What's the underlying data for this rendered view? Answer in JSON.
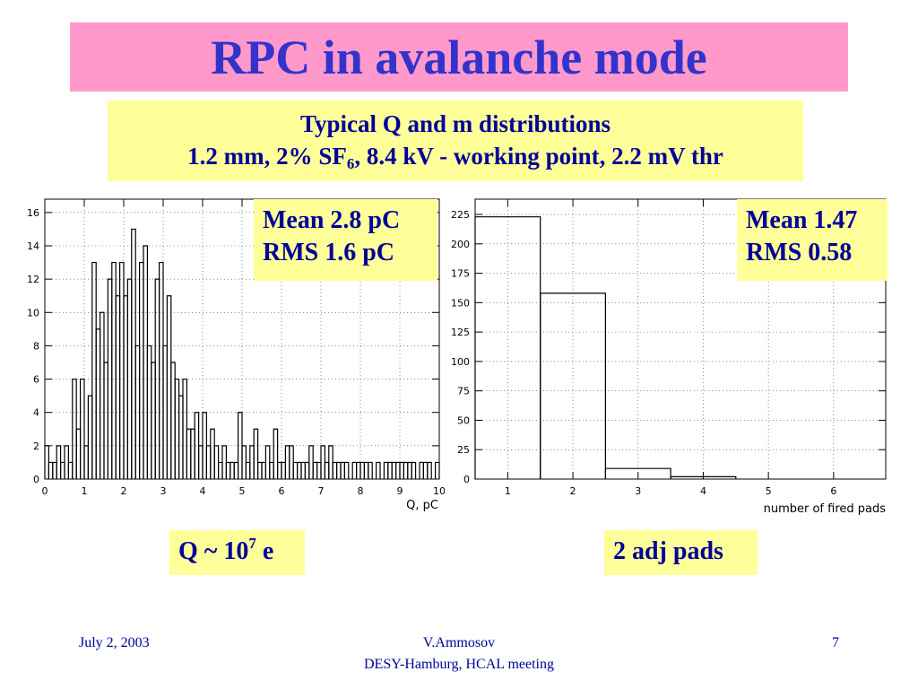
{
  "slide": {
    "title": "RPC in avalanche mode",
    "subtitle_line1": "Typical Q and m distributions",
    "subtitle_line2_pre": "1.2 mm, 2% SF",
    "subtitle_line2_sub": "6",
    "subtitle_line2_post": ", 8.4 kV - working point, 2.2 mV thr",
    "colors": {
      "title_bg": "#ff99cc",
      "title_text": "#3333cc",
      "box_bg": "#ffff99",
      "box_text": "#000099"
    }
  },
  "stats_left": {
    "line1": "Mean 2.8 pC",
    "line2": "RMS 1.6 pC"
  },
  "stats_right": {
    "line1": "Mean 1.47",
    "line2": "RMS 0.58"
  },
  "caption_left": {
    "pre": "Q ~ 10",
    "sup": "7",
    "post": " e"
  },
  "caption_right": "2 adj pads",
  "footer": {
    "date": "July 2, 2003",
    "author": "V.Ammosov",
    "meeting": "DESY-Hamburg,  HCAL  meeting",
    "page": "7"
  },
  "chart_data": [
    {
      "type": "bar",
      "style": "step-histogram",
      "xlabel": "Q, pC",
      "ylabel": "",
      "xlim": [
        0,
        10
      ],
      "ylim": [
        0,
        16.8
      ],
      "grid": true,
      "x_ticks": [
        "0",
        "1",
        "2",
        "3",
        "4",
        "5",
        "6",
        "7",
        "8",
        "9",
        "10"
      ],
      "y_ticks": [
        "0",
        "2",
        "4",
        "6",
        "8",
        "10",
        "12",
        "14",
        "16"
      ],
      "bin_width": 0.1,
      "values": [
        2,
        1,
        1,
        2,
        1,
        2,
        1,
        6,
        3,
        6,
        2,
        5,
        13,
        9,
        10,
        7,
        12,
        13,
        11,
        13,
        11,
        12,
        15,
        8,
        13,
        14,
        8,
        7,
        12,
        13,
        8,
        11,
        7,
        6,
        5,
        6,
        3,
        3,
        4,
        2,
        4,
        2,
        3,
        2,
        1,
        2,
        1,
        1,
        1,
        4,
        2,
        1,
        2,
        3,
        1,
        1,
        2,
        1,
        3,
        1,
        1,
        2,
        2,
        1,
        1,
        1,
        1,
        2,
        1,
        1,
        2,
        1,
        2,
        1,
        1,
        1,
        1,
        0,
        1,
        1,
        1,
        1,
        1,
        0,
        1,
        0,
        1,
        1,
        1,
        1,
        1,
        1,
        1,
        1,
        0,
        1,
        1,
        1,
        0,
        1
      ]
    },
    {
      "type": "bar",
      "style": "step-histogram",
      "xlabel": "number of fired pads",
      "ylabel": "",
      "xlim": [
        0.5,
        6.8
      ],
      "ylim": [
        0,
        238
      ],
      "grid": true,
      "x_ticks": [
        "1",
        "2",
        "3",
        "4",
        "5",
        "6"
      ],
      "y_ticks": [
        "0",
        "25",
        "50",
        "75",
        "100",
        "125",
        "150",
        "175",
        "200",
        "225"
      ],
      "categories": [
        "1",
        "2",
        "3",
        "4",
        "5",
        "6"
      ],
      "values": [
        223,
        158,
        9,
        2,
        0,
        0
      ]
    }
  ]
}
